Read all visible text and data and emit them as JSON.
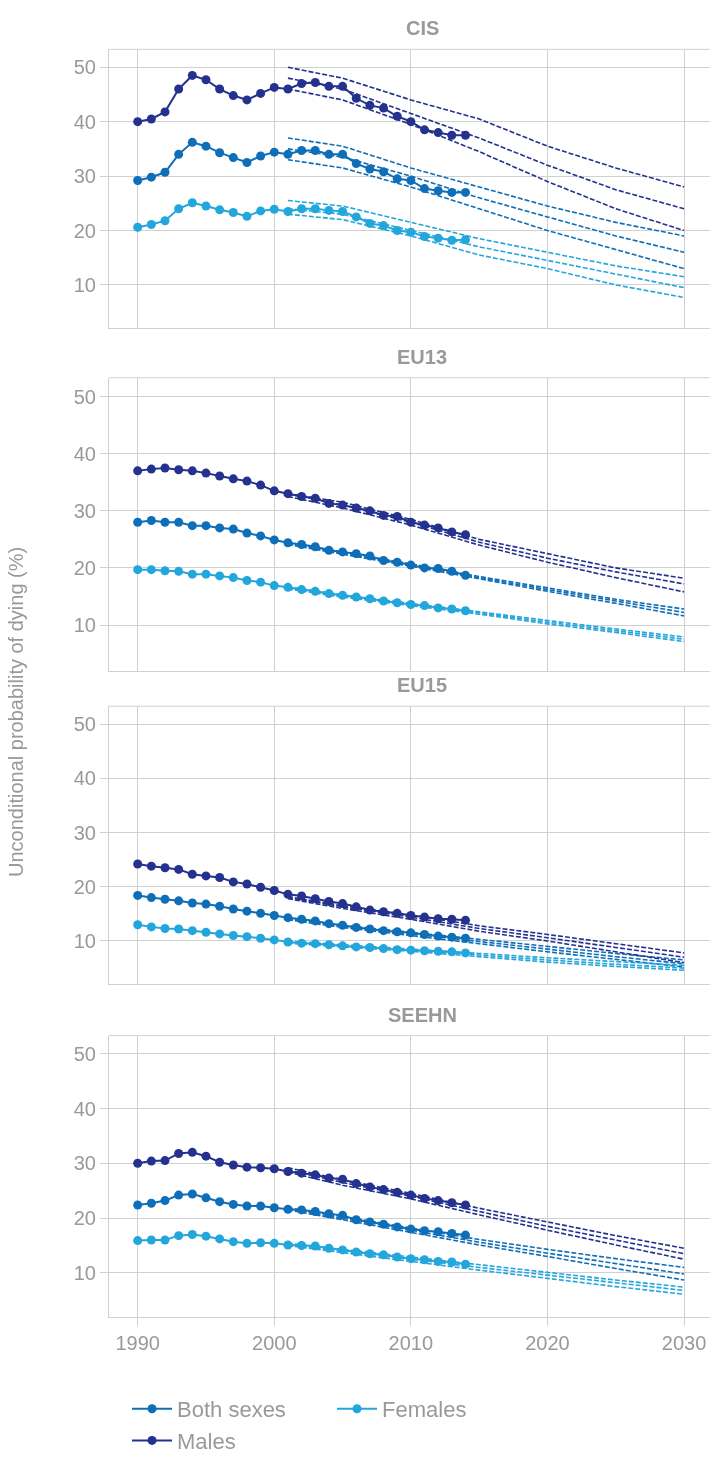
{
  "chart_data": [
    {
      "type": "line",
      "title": "CIS",
      "x": [
        1990,
        1991,
        1992,
        1993,
        1994,
        1995,
        1996,
        1997,
        1998,
        1999,
        2000,
        2001,
        2002,
        2003,
        2004,
        2005,
        2006,
        2007,
        2008,
        2009,
        2010,
        2011,
        2012,
        2013,
        2014
      ],
      "xlim": [
        1987.9,
        2031.9
      ],
      "xticks": [
        1990,
        2000,
        2010,
        2020,
        2030
      ],
      "ylim": [
        2,
        53.3
      ],
      "yticks": [
        10,
        20,
        30,
        40,
        50
      ],
      "grid": true,
      "tick_labels": "y",
      "legend": "bottom",
      "series": [
        {
          "name": "Both sexes",
          "color": "#0e6eb8",
          "marker": "circle",
          "line_style": "solid",
          "values": [
            29.2,
            29.8,
            30.7,
            34,
            36.2,
            35.5,
            34.3,
            33.4,
            32.5,
            33.7,
            34.4,
            34,
            34.7,
            34.7,
            34,
            34,
            32.3,
            31.3,
            30.8,
            29.5,
            29.2,
            27.7,
            27.3,
            27,
            27
          ]
        },
        {
          "name": "Females",
          "color": "#23a6dc",
          "marker": "circle",
          "line_style": "solid",
          "values": [
            20.6,
            21.1,
            21.8,
            24,
            25.1,
            24.5,
            23.8,
            23.3,
            22.6,
            23.6,
            23.9,
            23.5,
            24,
            24,
            23.7,
            23.5,
            22.5,
            21.3,
            20.9,
            20,
            19.7,
            18.9,
            18.6,
            18.2,
            18.3
          ]
        },
        {
          "name": "Males",
          "color": "#24318f",
          "marker": "circle",
          "line_style": "solid",
          "values": [
            40,
            40.5,
            41.8,
            46,
            48.5,
            47.7,
            46,
            44.8,
            44,
            45.2,
            46.3,
            46,
            47,
            47.2,
            46.5,
            46.5,
            44.3,
            43,
            42.5,
            41,
            40,
            38.5,
            38,
            37.5,
            37.5
          ]
        },
        {
          "color": "#0e6eb8",
          "marker": "none",
          "line_style": "dashed",
          "x": [
            2001,
            2005,
            2010,
            2015,
            2020,
            2025,
            2030
          ],
          "values": [
            37,
            35.5,
            31.5,
            28,
            24.5,
            21.5,
            19
          ]
        },
        {
          "color": "#0e6eb8",
          "marker": "none",
          "line_style": "dashed",
          "x": [
            2001,
            2005,
            2010,
            2015,
            2020,
            2025,
            2030
          ],
          "values": [
            35,
            33.5,
            30,
            26,
            22.5,
            19,
            16
          ]
        },
        {
          "color": "#0e6eb8",
          "marker": "none",
          "line_style": "dashed",
          "x": [
            2001,
            2005,
            2010,
            2015,
            2020,
            2025,
            2030
          ],
          "values": [
            33,
            31.5,
            28,
            24,
            20,
            16.5,
            13
          ]
        },
        {
          "color": "#23a6dc",
          "marker": "none",
          "line_style": "dashed",
          "x": [
            2001,
            2005,
            2010,
            2015,
            2020,
            2025,
            2030
          ],
          "values": [
            25.5,
            24.5,
            21.5,
            18.5,
            16,
            13.5,
            11.5
          ]
        },
        {
          "color": "#23a6dc",
          "marker": "none",
          "line_style": "dashed",
          "x": [
            2001,
            2005,
            2010,
            2015,
            2020,
            2025,
            2030
          ],
          "values": [
            24,
            23,
            20,
            17,
            14.5,
            12,
            9.5
          ]
        },
        {
          "color": "#23a6dc",
          "marker": "none",
          "line_style": "dashed",
          "x": [
            2001,
            2005,
            2010,
            2015,
            2020,
            2025,
            2030
          ],
          "values": [
            23,
            22,
            19,
            15.5,
            13,
            10,
            7.7
          ]
        },
        {
          "color": "#24318f",
          "marker": "none",
          "line_style": "dashed",
          "x": [
            2001,
            2005,
            2010,
            2015,
            2020,
            2025,
            2030
          ],
          "values": [
            50,
            48,
            44,
            40.5,
            35.5,
            31.5,
            28
          ]
        },
        {
          "color": "#24318f",
          "marker": "none",
          "line_style": "dashed",
          "x": [
            2001,
            2005,
            2010,
            2015,
            2020,
            2025,
            2030
          ],
          "values": [
            48,
            46,
            41.5,
            37,
            32,
            27.5,
            24
          ]
        },
        {
          "color": "#24318f",
          "marker": "none",
          "line_style": "dashed",
          "x": [
            2001,
            2005,
            2010,
            2015,
            2020,
            2025,
            2030
          ],
          "values": [
            46,
            44,
            39.5,
            34.5,
            29,
            24,
            20
          ]
        }
      ]
    },
    {
      "type": "line",
      "title": "EU13",
      "ylabel": "Unconditional probability of dying (%)",
      "x": [
        1990,
        1991,
        1992,
        1993,
        1994,
        1995,
        1996,
        1997,
        1998,
        1999,
        2000,
        2001,
        2002,
        2003,
        2004,
        2005,
        2006,
        2007,
        2008,
        2009,
        2010,
        2011,
        2012,
        2013,
        2014
      ],
      "xlim": [
        1987.9,
        2031.9
      ],
      "xticks": [
        1990,
        2000,
        2010,
        2020,
        2030
      ],
      "ylim": [
        2,
        53.3
      ],
      "yticks": [
        10,
        20,
        30,
        40,
        50
      ],
      "grid": true,
      "tick_labels": "y",
      "series": [
        {
          "color": "#0e6eb8",
          "marker": "circle",
          "line_style": "solid",
          "values": [
            28,
            28.3,
            28,
            28,
            27.4,
            27.4,
            27,
            26.8,
            26.1,
            25.6,
            24.9,
            24.4,
            24.1,
            23.7,
            23.1,
            22.8,
            22.5,
            22.1,
            21.3,
            21,
            20.5,
            20,
            19.9,
            19.4,
            18.7
          ]
        },
        {
          "color": "#23a6dc",
          "marker": "circle",
          "line_style": "solid",
          "values": [
            19.7,
            19.7,
            19.5,
            19.4,
            18.9,
            18.9,
            18.6,
            18.3,
            17.8,
            17.5,
            16.9,
            16.6,
            16.2,
            15.9,
            15.5,
            15.2,
            14.9,
            14.6,
            14.2,
            13.9,
            13.6,
            13.4,
            13,
            12.8,
            12.5
          ]
        },
        {
          "color": "#24318f",
          "marker": "circle",
          "line_style": "solid",
          "values": [
            37,
            37.3,
            37.5,
            37.2,
            37,
            36.6,
            36.1,
            35.6,
            35.2,
            34.5,
            33.5,
            33,
            32.5,
            32.2,
            31.3,
            31,
            30.5,
            30,
            29.2,
            29,
            28,
            27.5,
            27,
            26.3,
            25.8
          ]
        },
        {
          "color": "#0e6eb8",
          "marker": "none",
          "line_style": "dashed",
          "x": [
            2001,
            2005,
            2010,
            2015,
            2020,
            2025,
            2030
          ],
          "values": [
            24.5,
            22.8,
            20.7,
            18.5,
            16.5,
            14.5,
            12.8
          ]
        },
        {
          "color": "#0e6eb8",
          "marker": "none",
          "line_style": "dashed",
          "x": [
            2001,
            2005,
            2010,
            2015,
            2020,
            2025,
            2030
          ],
          "values": [
            24.3,
            22.6,
            20.5,
            18.3,
            16.2,
            14.2,
            12.2
          ]
        },
        {
          "color": "#0e6eb8",
          "marker": "none",
          "line_style": "dashed",
          "x": [
            2001,
            2005,
            2010,
            2015,
            2020,
            2025,
            2030
          ],
          "values": [
            24.1,
            22.4,
            20.3,
            18.1,
            15.9,
            13.8,
            11.6
          ]
        },
        {
          "color": "#23a6dc",
          "marker": "none",
          "line_style": "dashed",
          "x": [
            2001,
            2005,
            2010,
            2015,
            2020,
            2025,
            2030
          ],
          "values": [
            16.7,
            15.3,
            13.8,
            12.3,
            10.8,
            9.3,
            7.9
          ]
        },
        {
          "color": "#23a6dc",
          "marker": "none",
          "line_style": "dashed",
          "x": [
            2001,
            2005,
            2010,
            2015,
            2020,
            2025,
            2030
          ],
          "values": [
            16.5,
            15.1,
            13.6,
            12.1,
            10.5,
            9,
            7.5
          ]
        },
        {
          "color": "#23a6dc",
          "marker": "none",
          "line_style": "dashed",
          "x": [
            2001,
            2005,
            2010,
            2015,
            2020,
            2025,
            2030
          ],
          "values": [
            16.3,
            14.9,
            13.4,
            11.9,
            10.2,
            8.7,
            7.1
          ]
        },
        {
          "color": "#24318f",
          "marker": "none",
          "line_style": "dashed",
          "x": [
            2001,
            2005,
            2010,
            2015,
            2020,
            2025,
            2030
          ],
          "values": [
            33,
            31.5,
            28.5,
            25,
            22.5,
            20,
            18.2
          ]
        },
        {
          "color": "#24318f",
          "marker": "none",
          "line_style": "dashed",
          "x": [
            2001,
            2005,
            2010,
            2015,
            2020,
            2025,
            2030
          ],
          "values": [
            33,
            31,
            28,
            24.5,
            21.7,
            19.3,
            17.2
          ]
        },
        {
          "color": "#24318f",
          "marker": "none",
          "line_style": "dashed",
          "x": [
            2001,
            2005,
            2010,
            2015,
            2020,
            2025,
            2030
          ],
          "values": [
            32.5,
            30.5,
            27.5,
            24,
            21,
            18.3,
            15.8
          ]
        }
      ]
    },
    {
      "type": "line",
      "title": "EU15",
      "x": [
        1990,
        1991,
        1992,
        1993,
        1994,
        1995,
        1996,
        1997,
        1998,
        1999,
        2000,
        2001,
        2002,
        2003,
        2004,
        2005,
        2006,
        2007,
        2008,
        2009,
        2010,
        2011,
        2012,
        2013,
        2014
      ],
      "xlim": [
        1987.9,
        2031.9
      ],
      "xticks": [
        1990,
        2000,
        2010,
        2020,
        2030
      ],
      "ylim": [
        2,
        53.3
      ],
      "yticks": [
        10,
        20,
        30,
        40,
        50
      ],
      "grid": true,
      "tick_labels": "y",
      "series": [
        {
          "color": "#0e6eb8",
          "marker": "circle",
          "line_style": "solid",
          "values": [
            18.4,
            18,
            17.7,
            17.4,
            17,
            16.8,
            16.4,
            15.9,
            15.5,
            15.1,
            14.7,
            14.3,
            14,
            13.7,
            13.2,
            12.9,
            12.5,
            12.2,
            11.9,
            11.7,
            11.5,
            11.2,
            10.9,
            10.7,
            10.5
          ]
        },
        {
          "color": "#23a6dc",
          "marker": "circle",
          "line_style": "solid",
          "values": [
            13,
            12.6,
            12.3,
            12.2,
            11.9,
            11.6,
            11.3,
            11,
            10.8,
            10.5,
            10.2,
            9.8,
            9.6,
            9.5,
            9.3,
            9.1,
            8.9,
            8.8,
            8.6,
            8.4,
            8.3,
            8.2,
            8.1,
            8,
            7.8
          ]
        },
        {
          "color": "#24318f",
          "marker": "circle",
          "line_style": "solid",
          "values": [
            24.2,
            23.8,
            23.5,
            23.2,
            22.3,
            22,
            21.7,
            20.9,
            20.5,
            19.9,
            19.3,
            18.6,
            18.3,
            17.8,
            17.3,
            16.9,
            16.3,
            15.7,
            15.4,
            15.1,
            14.7,
            14.4,
            14.1,
            14,
            13.8
          ]
        },
        {
          "color": "#0e6eb8",
          "marker": "none",
          "line_style": "dashed",
          "x": [
            2001,
            2005,
            2010,
            2015,
            2020,
            2025,
            2030
          ],
          "values": [
            14.3,
            12.9,
            11.6,
            10.3,
            9,
            7.7,
            6.5
          ]
        },
        {
          "color": "#0e6eb8",
          "marker": "none",
          "line_style": "dashed",
          "x": [
            2001,
            2005,
            2010,
            2015,
            2020,
            2025,
            2030
          ],
          "values": [
            14.1,
            12.7,
            11.3,
            9.9,
            8.5,
            7.1,
            5.8
          ]
        },
        {
          "color": "#0e6eb8",
          "marker": "none",
          "line_style": "dashed",
          "x": [
            2001,
            2005,
            2010,
            2015,
            2020,
            2025,
            2030
          ],
          "values": [
            13.9,
            12.5,
            11,
            9.5,
            8,
            6.6,
            5.2
          ]
        },
        {
          "color": "#23a6dc",
          "marker": "none",
          "line_style": "dashed",
          "x": [
            2001,
            2005,
            2010,
            2015,
            2020,
            2025,
            2030
          ],
          "values": [
            10,
            9.3,
            8.5,
            7.7,
            6.9,
            6.2,
            5.5
          ]
        },
        {
          "color": "#23a6dc",
          "marker": "none",
          "line_style": "dashed",
          "x": [
            2001,
            2005,
            2010,
            2015,
            2020,
            2025,
            2030
          ],
          "values": [
            9.8,
            9.1,
            8.3,
            7.4,
            6.5,
            5.7,
            5
          ]
        },
        {
          "color": "#23a6dc",
          "marker": "none",
          "line_style": "dashed",
          "x": [
            2001,
            2005,
            2010,
            2015,
            2020,
            2025,
            2030
          ],
          "values": [
            9.6,
            8.9,
            8.1,
            7.1,
            6.1,
            5.3,
            4.6
          ]
        },
        {
          "color": "#24318f",
          "marker": "none",
          "line_style": "dashed",
          "x": [
            2001,
            2005,
            2010,
            2015,
            2020,
            2025,
            2030
          ],
          "values": [
            18.2,
            16.5,
            14.8,
            12.8,
            11.2,
            9.5,
            7.8
          ]
        },
        {
          "color": "#24318f",
          "marker": "none",
          "line_style": "dashed",
          "x": [
            2001,
            2005,
            2010,
            2015,
            2020,
            2025,
            2030
          ],
          "values": [
            18,
            16.3,
            14.4,
            12.3,
            10.6,
            8.8,
            7
          ]
        },
        {
          "color": "#24318f",
          "marker": "none",
          "line_style": "dashed",
          "x": [
            2001,
            2005,
            2010,
            2015,
            2020,
            2025,
            2030
          ],
          "values": [
            17.8,
            16,
            14,
            11.8,
            10,
            8,
            6
          ]
        }
      ]
    },
    {
      "type": "line",
      "title": "SEEHN",
      "x": [
        1990,
        1991,
        1992,
        1993,
        1994,
        1995,
        1996,
        1997,
        1998,
        1999,
        2000,
        2001,
        2002,
        2003,
        2004,
        2005,
        2006,
        2007,
        2008,
        2009,
        2010,
        2011,
        2012,
        2013,
        2014
      ],
      "xlim": [
        1987.9,
        2031.9
      ],
      "xticks": [
        1990,
        2000,
        2010,
        2020,
        2030
      ],
      "ylim": [
        2,
        53.3
      ],
      "yticks": [
        10,
        20,
        30,
        40,
        50
      ],
      "grid": true,
      "series": [
        {
          "color": "#0e6eb8",
          "marker": "circle",
          "line_style": "solid",
          "values": [
            22.4,
            22.7,
            23.2,
            24.2,
            24.4,
            23.7,
            23,
            22.5,
            22.2,
            22.2,
            21.9,
            21.6,
            21.5,
            21.2,
            20.8,
            20.5,
            19.7,
            19.3,
            18.9,
            18.4,
            18,
            17.7,
            17.5,
            17.2,
            16.9
          ]
        },
        {
          "color": "#23a6dc",
          "marker": "circle",
          "line_style": "solid",
          "values": [
            15.9,
            16,
            16,
            16.8,
            17,
            16.7,
            16.2,
            15.7,
            15.4,
            15.5,
            15.4,
            15.1,
            15,
            14.9,
            14.5,
            14.2,
            13.8,
            13.5,
            13.3,
            12.9,
            12.6,
            12.4,
            12.1,
            12,
            11.6
          ]
        },
        {
          "color": "#24318f",
          "marker": "circle",
          "line_style": "solid",
          "values": [
            30,
            30.4,
            30.5,
            31.8,
            32,
            31.3,
            30.2,
            29.7,
            29.3,
            29.2,
            29,
            28.5,
            28.2,
            27.9,
            27.3,
            27.1,
            26.3,
            25.7,
            25.2,
            24.7,
            24.2,
            23.6,
            23.2,
            22.8,
            22.4
          ]
        },
        {
          "color": "#0e6eb8",
          "marker": "none",
          "line_style": "dashed",
          "x": [
            2001,
            2005,
            2010,
            2015,
            2020,
            2025,
            2030
          ],
          "values": [
            21.9,
            20.3,
            18.2,
            16.1,
            14.3,
            12.6,
            11
          ]
        },
        {
          "color": "#0e6eb8",
          "marker": "none",
          "line_style": "dashed",
          "x": [
            2001,
            2005,
            2010,
            2015,
            2020,
            2025,
            2030
          ],
          "values": [
            21.7,
            20,
            17.8,
            15.6,
            13.6,
            11.7,
            9.8
          ]
        },
        {
          "color": "#0e6eb8",
          "marker": "none",
          "line_style": "dashed",
          "x": [
            2001,
            2005,
            2010,
            2015,
            2020,
            2025,
            2030
          ],
          "values": [
            21.5,
            19.7,
            17.4,
            15.1,
            13,
            10.8,
            8.7
          ]
        },
        {
          "color": "#23a6dc",
          "marker": "none",
          "line_style": "dashed",
          "x": [
            2001,
            2005,
            2010,
            2015,
            2020,
            2025,
            2030
          ],
          "values": [
            15.4,
            14.3,
            12.9,
            11.5,
            10.1,
            8.7,
            7.4
          ]
        },
        {
          "color": "#23a6dc",
          "marker": "none",
          "line_style": "dashed",
          "x": [
            2001,
            2005,
            2010,
            2015,
            2020,
            2025,
            2030
          ],
          "values": [
            15.2,
            14,
            12.5,
            11,
            9.6,
            8.2,
            6.8
          ]
        },
        {
          "color": "#23a6dc",
          "marker": "none",
          "line_style": "dashed",
          "x": [
            2001,
            2005,
            2010,
            2015,
            2020,
            2025,
            2030
          ],
          "values": [
            15,
            13.7,
            12.1,
            10.5,
            9,
            7.5,
            6.1
          ]
        },
        {
          "color": "#24318f",
          "marker": "none",
          "line_style": "dashed",
          "x": [
            2001,
            2005,
            2010,
            2015,
            2020,
            2025,
            2030
          ],
          "values": [
            29.2,
            27,
            24.5,
            21.8,
            19.3,
            16.8,
            14.5
          ]
        },
        {
          "color": "#24318f",
          "marker": "none",
          "line_style": "dashed",
          "x": [
            2001,
            2005,
            2010,
            2015,
            2020,
            2025,
            2030
          ],
          "values": [
            28.8,
            26.5,
            24,
            21.2,
            18.5,
            16,
            13.5
          ]
        },
        {
          "color": "#24318f",
          "marker": "none",
          "line_style": "dashed",
          "x": [
            2001,
            2005,
            2010,
            2015,
            2020,
            2025,
            2030
          ],
          "values": [
            28.4,
            26,
            23.5,
            20.6,
            17.8,
            15.1,
            12.5
          ]
        }
      ]
    }
  ]
}
